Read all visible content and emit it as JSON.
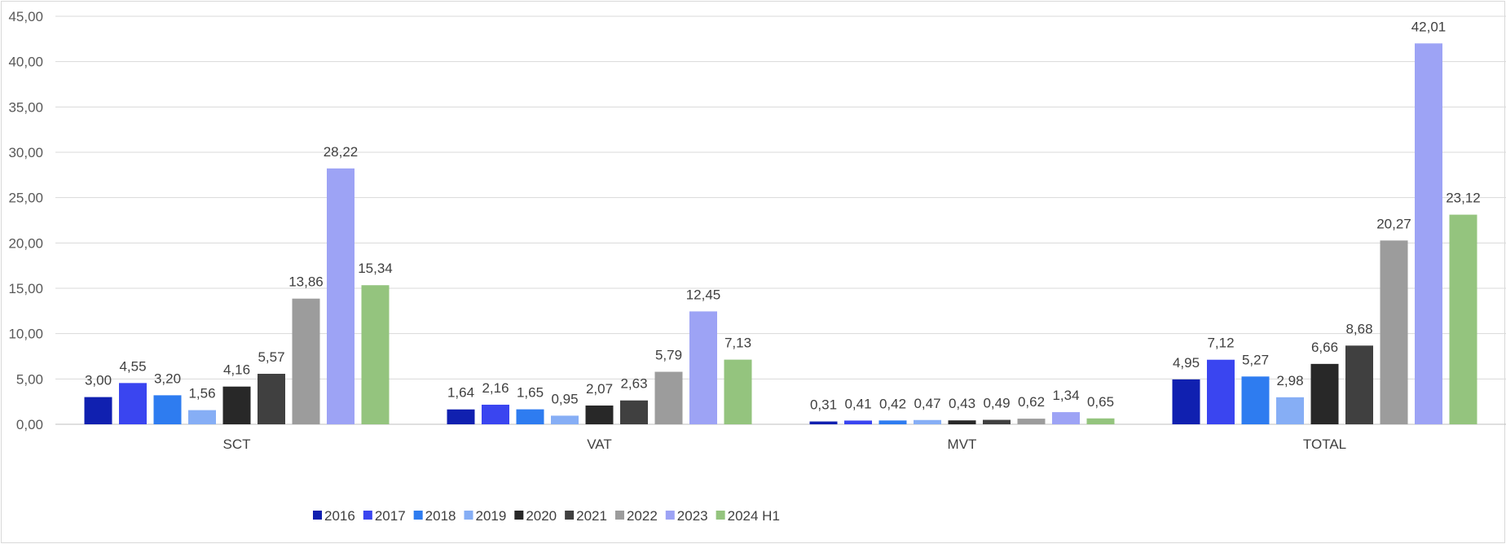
{
  "chart_data": {
    "type": "bar",
    "title": "",
    "xlabel": "",
    "ylabel": "",
    "categories": [
      "SCT",
      "VAT",
      "MVT",
      "TOTAL"
    ],
    "ylim": [
      0,
      45
    ],
    "yticks": [
      "0,00",
      "5,00",
      "10,00",
      "15,00",
      "20,00",
      "25,00",
      "30,00",
      "35,00",
      "40,00",
      "45,00"
    ],
    "ytick_values": [
      0,
      5,
      10,
      15,
      20,
      25,
      30,
      35,
      40,
      45
    ],
    "grid": true,
    "legend_position": "bottom",
    "series": [
      {
        "name": "2016",
        "color": "#1020B0",
        "values": [
          3.0,
          1.64,
          0.31,
          4.95
        ],
        "labels": [
          "3,00",
          "1,64",
          "0,31",
          "4,95"
        ]
      },
      {
        "name": "2017",
        "color": "#3A45F0",
        "values": [
          4.55,
          2.16,
          0.41,
          7.12
        ],
        "labels": [
          "4,55",
          "2,16",
          "0,41",
          "7,12"
        ]
      },
      {
        "name": "2018",
        "color": "#2E7CF0",
        "values": [
          3.2,
          1.65,
          0.42,
          5.27
        ],
        "labels": [
          "3,20",
          "1,65",
          "0,42",
          "5,27"
        ]
      },
      {
        "name": "2019",
        "color": "#86AEF5",
        "values": [
          1.56,
          0.95,
          0.47,
          2.98
        ],
        "labels": [
          "1,56",
          "0,95",
          "0,47",
          "2,98"
        ]
      },
      {
        "name": "2020",
        "color": "#282828",
        "values": [
          4.16,
          2.07,
          0.43,
          6.66
        ],
        "labels": [
          "4,16",
          "2,07",
          "0,43",
          "6,66"
        ]
      },
      {
        "name": "2021",
        "color": "#404040",
        "values": [
          5.57,
          2.63,
          0.49,
          8.68
        ],
        "labels": [
          "5,57",
          "2,63",
          "0,49",
          "8,68"
        ]
      },
      {
        "name": "2022",
        "color": "#9C9C9C",
        "values": [
          13.86,
          5.79,
          0.62,
          20.27
        ],
        "labels": [
          "13,86",
          "5,79",
          "0,62",
          "20,27"
        ]
      },
      {
        "name": "2023",
        "color": "#9DA3F5",
        "values": [
          28.22,
          12.45,
          1.34,
          42.01
        ],
        "labels": [
          "28,22",
          "12,45",
          "1,34",
          "42,01"
        ]
      },
      {
        "name": "2024 H1",
        "color": "#94C47E",
        "values": [
          15.34,
          7.13,
          0.65,
          23.12
        ],
        "labels": [
          "15,34",
          "7,13",
          "0,65",
          "23,12"
        ]
      }
    ]
  }
}
